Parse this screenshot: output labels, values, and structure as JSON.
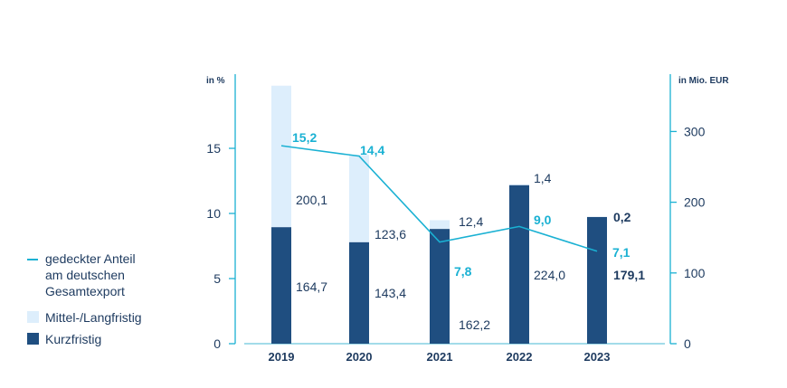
{
  "chart_data": {
    "type": "bar",
    "categories": [
      "2019",
      "2020",
      "2021",
      "2022",
      "2023"
    ],
    "left_axis": {
      "unit_label": "in %",
      "ylim": [
        0,
        20.5
      ],
      "ticks": [
        "0",
        "5",
        "10",
        "15"
      ],
      "tick_values": [
        0,
        5,
        10,
        15
      ]
    },
    "right_axis": {
      "unit_label": "in Mio. EUR",
      "ylim": [
        0,
        375
      ],
      "ticks": [
        "0",
        "100",
        "200",
        "300"
      ],
      "tick_values": [
        0,
        100,
        200,
        300
      ]
    },
    "series": [
      {
        "name": "Kurzfristig",
        "kind": "bar",
        "axis": "right",
        "color": "#1f4e80",
        "values": [
          164.7,
          143.4,
          162.2,
          224.0,
          179.1
        ],
        "labels": [
          "164,7",
          "143,4",
          "162,2",
          "224,0",
          "179,1"
        ]
      },
      {
        "name": "Mittel-/Langfristig",
        "kind": "bar",
        "axis": "right",
        "color": "#ddeefc",
        "values": [
          200.1,
          123.6,
          12.4,
          1.4,
          0.2
        ],
        "labels": [
          "200,1",
          "123,6",
          "12,4",
          "1,4",
          "0,2"
        ]
      },
      {
        "name": "gedeckter Anteil am deutschen Gesamtexport",
        "kind": "line",
        "axis": "left",
        "color": "#1ab1d3",
        "values": [
          15.2,
          14.4,
          7.8,
          9.0,
          7.1
        ],
        "labels": [
          "15,2",
          "14,4",
          "7,8",
          "9,0",
          "7,1"
        ]
      }
    ],
    "legend_position": "left",
    "grid": false
  },
  "legend": {
    "line_label_1": "gedeckter Anteil",
    "line_label_2": "am deutschen",
    "line_label_3": "Gesamtexport",
    "mid_label": "Mittel-/Langfristig",
    "short_label": "Kurzfristig",
    "line_color": "#1ab1d3",
    "mid_color": "#ddeefc",
    "short_color": "#1f4e80"
  }
}
